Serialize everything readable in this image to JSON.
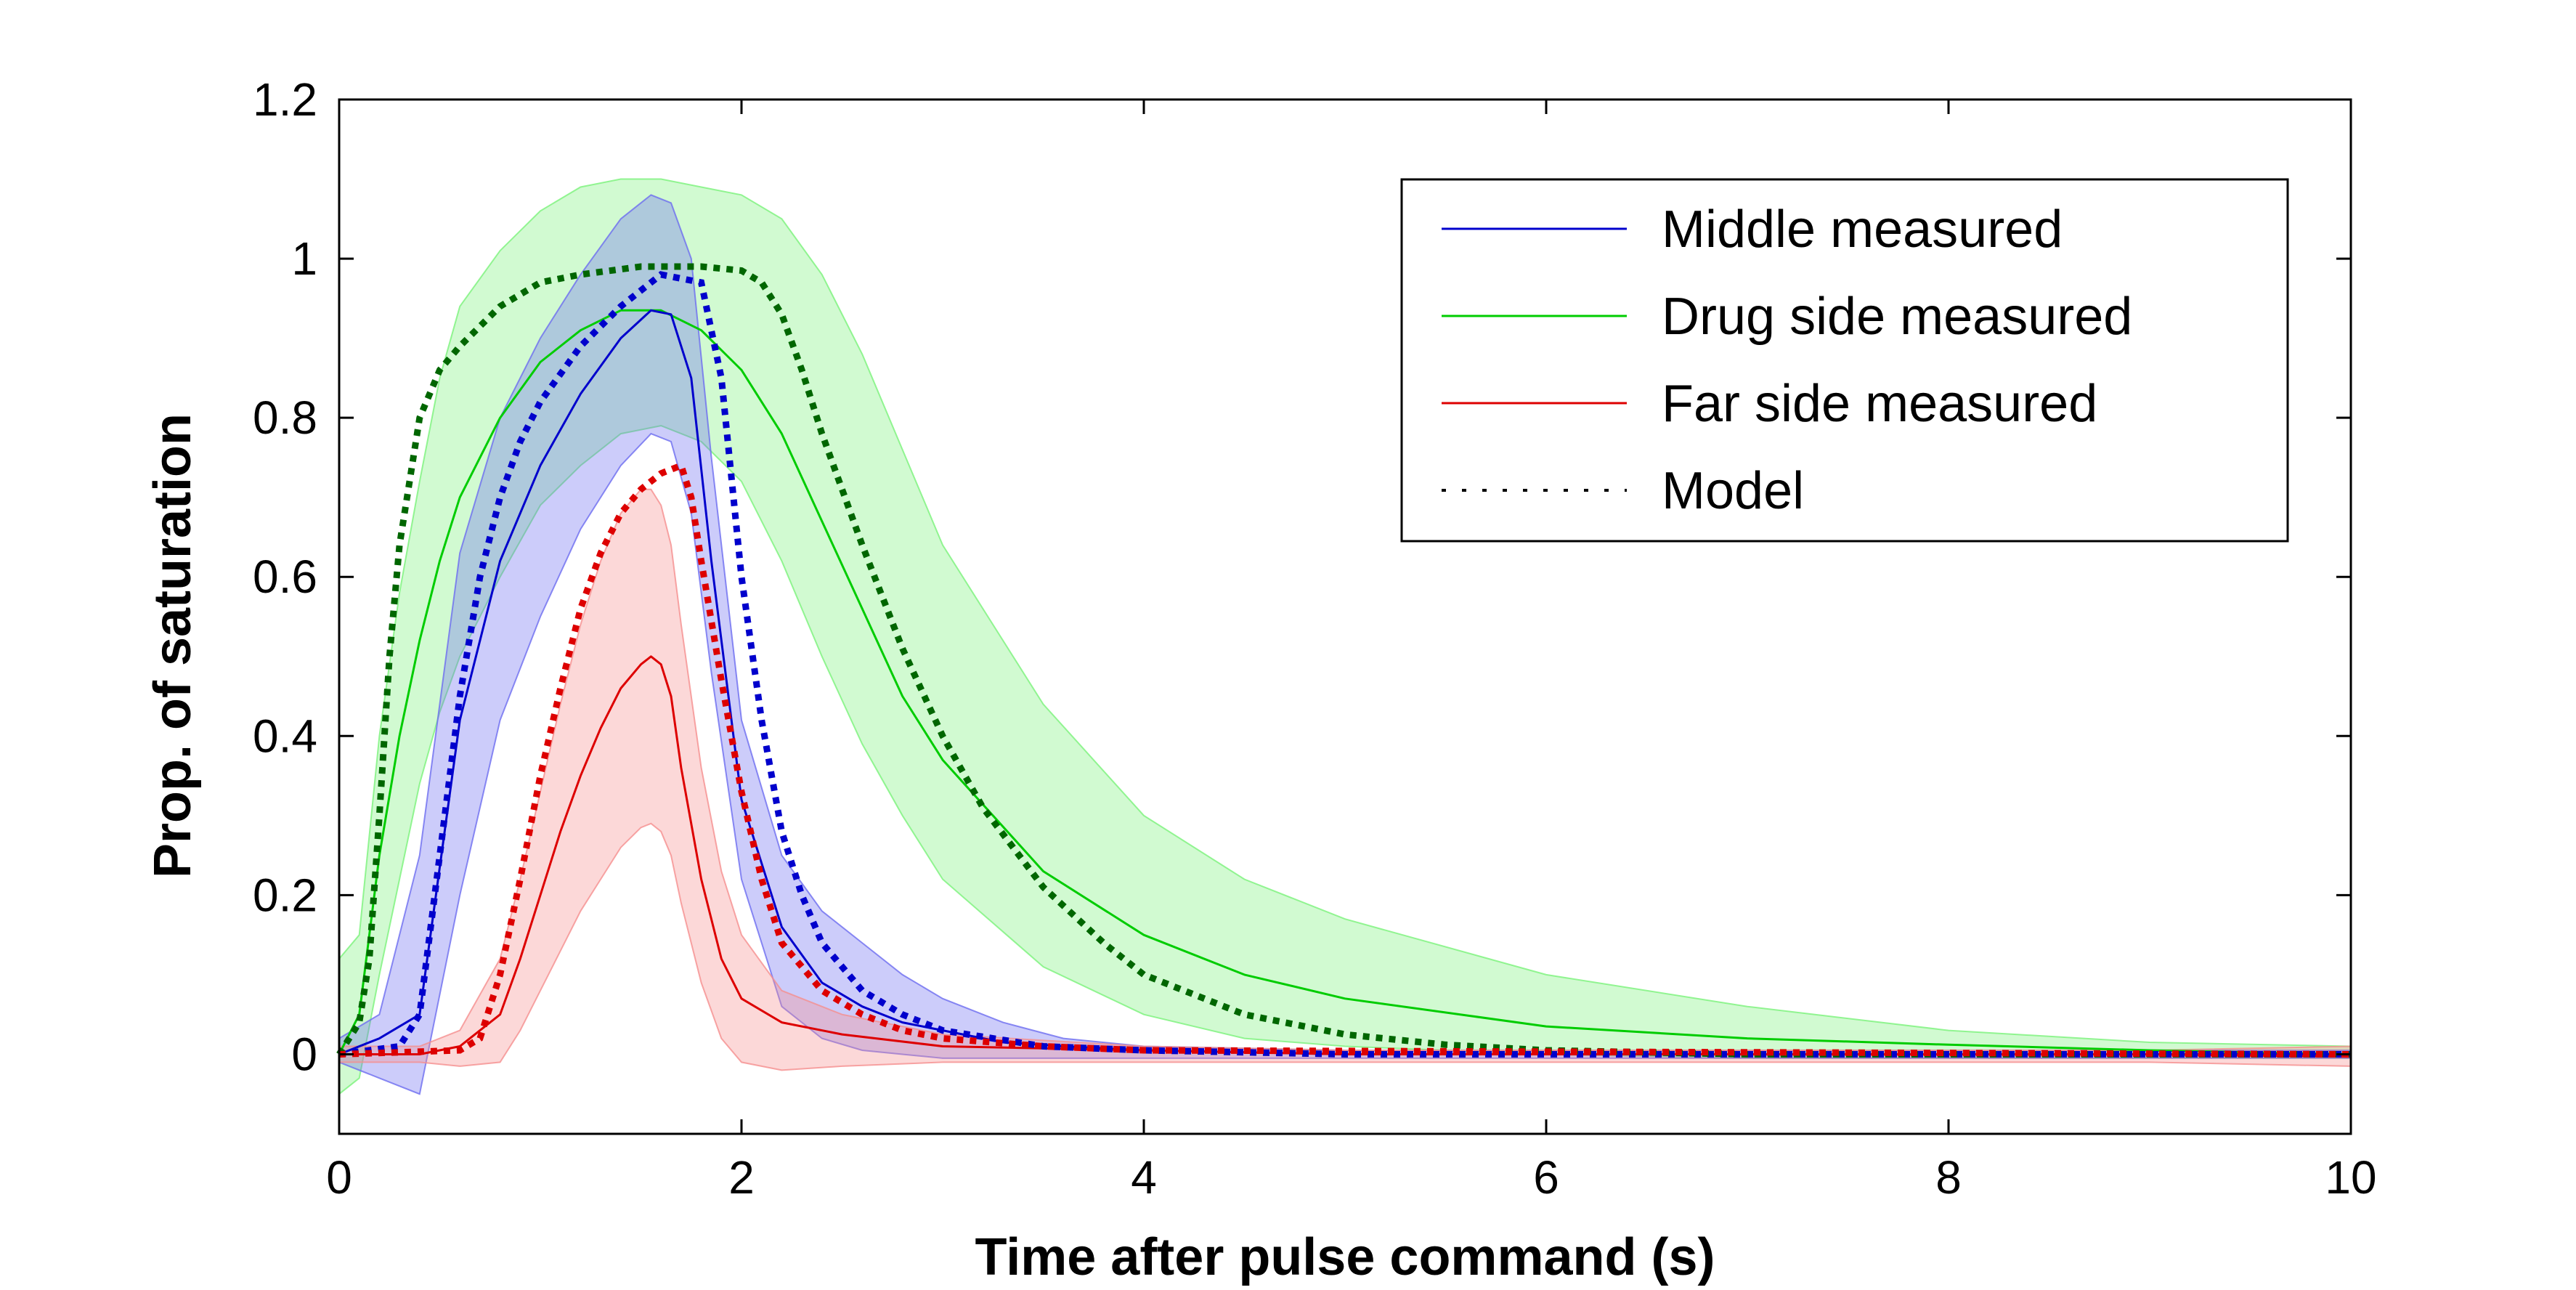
{
  "chart_data": {
    "type": "line",
    "title": "",
    "xlabel": "Time after pulse command (s)",
    "ylabel": "Prop. of saturation",
    "xlim": [
      0,
      10
    ],
    "ylim": [
      -0.1,
      1.2
    ],
    "xticks": [
      0,
      2,
      4,
      6,
      8,
      10
    ],
    "yticks": [
      0,
      0.2,
      0.4,
      0.6,
      0.8,
      1,
      1.2
    ],
    "xtick_labels": [
      "0",
      "2",
      "4",
      "6",
      "8",
      "10"
    ],
    "ytick_labels": [
      "0",
      "0.2",
      "0.4",
      "0.6",
      "0.8",
      "1",
      "1.2"
    ],
    "grid": false,
    "legend_position": "top-right",
    "legend": [
      {
        "label": "Middle measured",
        "color": "#0000cc",
        "style": "solid"
      },
      {
        "label": "Drug side measured",
        "color": "#00cc00",
        "style": "solid"
      },
      {
        "label": "Far side measured",
        "color": "#dd0000",
        "style": "solid"
      },
      {
        "label": "Model",
        "color": "#000000",
        "style": "dotted"
      }
    ],
    "series": [
      {
        "key": "middle",
        "color": "#0000cc",
        "band_color": "#6d6df0",
        "x": [
          0,
          0.2,
          0.4,
          0.6,
          0.8,
          1.0,
          1.2,
          1.4,
          1.55,
          1.65,
          1.75,
          1.85,
          2.0,
          2.2,
          2.4,
          2.6,
          2.8,
          3.0,
          3.3,
          3.6,
          4.0,
          5.0,
          6.0,
          7.0,
          8.0,
          9.0,
          10.0
        ],
        "mean": [
          0.0,
          0.02,
          0.05,
          0.42,
          0.62,
          0.74,
          0.83,
          0.9,
          0.935,
          0.93,
          0.85,
          0.62,
          0.32,
          0.16,
          0.09,
          0.06,
          0.04,
          0.03,
          0.015,
          0.01,
          0.005,
          0.0,
          0.0,
          0.0,
          0.0,
          0.0,
          0.0
        ],
        "upper": [
          0.02,
          0.05,
          0.25,
          0.63,
          0.8,
          0.9,
          0.98,
          1.05,
          1.08,
          1.07,
          1.0,
          0.75,
          0.42,
          0.25,
          0.18,
          0.14,
          0.1,
          0.07,
          0.04,
          0.02,
          0.01,
          0.005,
          0.005,
          0.005,
          0.005,
          0.005,
          0.005
        ],
        "lower": [
          -0.01,
          -0.03,
          -0.05,
          0.2,
          0.42,
          0.55,
          0.66,
          0.74,
          0.78,
          0.77,
          0.68,
          0.48,
          0.22,
          0.06,
          0.02,
          0.005,
          0.0,
          -0.005,
          -0.005,
          -0.005,
          -0.005,
          -0.005,
          -0.005,
          -0.005,
          -0.005,
          -0.005,
          -0.005
        ]
      },
      {
        "key": "drug",
        "color": "#00cc00",
        "band_color": "#7af27a",
        "x": [
          0,
          0.1,
          0.2,
          0.3,
          0.4,
          0.5,
          0.6,
          0.8,
          1.0,
          1.2,
          1.4,
          1.6,
          1.8,
          2.0,
          2.2,
          2.4,
          2.6,
          2.8,
          3.0,
          3.5,
          4.0,
          4.5,
          5.0,
          6.0,
          7.0,
          8.0,
          9.0,
          10.0
        ],
        "mean": [
          0.0,
          0.05,
          0.25,
          0.4,
          0.52,
          0.62,
          0.7,
          0.8,
          0.87,
          0.91,
          0.935,
          0.935,
          0.91,
          0.86,
          0.78,
          0.67,
          0.56,
          0.45,
          0.37,
          0.23,
          0.15,
          0.1,
          0.07,
          0.035,
          0.02,
          0.012,
          0.005,
          0.0
        ],
        "upper": [
          0.12,
          0.15,
          0.4,
          0.58,
          0.72,
          0.85,
          0.94,
          1.01,
          1.06,
          1.09,
          1.1,
          1.1,
          1.09,
          1.08,
          1.05,
          0.98,
          0.88,
          0.76,
          0.64,
          0.44,
          0.3,
          0.22,
          0.17,
          0.1,
          0.06,
          0.03,
          0.015,
          0.01
        ],
        "lower": [
          -0.05,
          -0.03,
          0.1,
          0.22,
          0.34,
          0.43,
          0.5,
          0.6,
          0.69,
          0.74,
          0.78,
          0.79,
          0.77,
          0.72,
          0.62,
          0.5,
          0.39,
          0.3,
          0.22,
          0.11,
          0.05,
          0.02,
          0.01,
          0.0,
          -0.005,
          -0.005,
          -0.005,
          -0.005
        ]
      },
      {
        "key": "far",
        "color": "#dd0000",
        "band_color": "#f58e8e",
        "x": [
          0,
          0.4,
          0.6,
          0.8,
          0.9,
          1.0,
          1.1,
          1.2,
          1.3,
          1.4,
          1.5,
          1.55,
          1.6,
          1.65,
          1.7,
          1.8,
          1.9,
          2.0,
          2.2,
          2.5,
          3.0,
          4.0,
          5.0,
          6.0,
          7.0,
          8.0,
          9.0,
          10.0
        ],
        "mean": [
          0.0,
          0.0,
          0.01,
          0.05,
          0.12,
          0.2,
          0.28,
          0.35,
          0.41,
          0.46,
          0.49,
          0.5,
          0.49,
          0.45,
          0.36,
          0.22,
          0.12,
          0.07,
          0.04,
          0.025,
          0.01,
          0.005,
          0.0,
          0.0,
          0.0,
          0.0,
          0.0,
          -0.003
        ],
        "upper": [
          0.01,
          0.01,
          0.03,
          0.12,
          0.22,
          0.33,
          0.44,
          0.54,
          0.62,
          0.68,
          0.71,
          0.71,
          0.69,
          0.64,
          0.54,
          0.36,
          0.23,
          0.15,
          0.08,
          0.05,
          0.025,
          0.01,
          0.005,
          0.005,
          0.005,
          0.005,
          0.005,
          0.01
        ],
        "lower": [
          -0.01,
          -0.01,
          -0.015,
          -0.01,
          0.03,
          0.08,
          0.13,
          0.18,
          0.22,
          0.26,
          0.285,
          0.29,
          0.28,
          0.25,
          0.19,
          0.09,
          0.02,
          -0.01,
          -0.02,
          -0.015,
          -0.01,
          -0.01,
          -0.01,
          -0.01,
          -0.01,
          -0.01,
          -0.01,
          -0.015
        ]
      }
    ],
    "model": [
      {
        "key": "middle-model",
        "color": "#0000cc",
        "x": [
          0,
          0.3,
          0.4,
          0.5,
          0.6,
          0.7,
          0.8,
          0.9,
          1.0,
          1.2,
          1.4,
          1.6,
          1.8,
          1.9,
          2.0,
          2.1,
          2.2,
          2.3,
          2.4,
          2.6,
          2.8,
          3.0,
          3.5,
          4.0,
          5.0,
          10.0
        ],
        "y": [
          0.0,
          0.01,
          0.05,
          0.25,
          0.45,
          0.6,
          0.7,
          0.77,
          0.82,
          0.89,
          0.94,
          0.98,
          0.97,
          0.85,
          0.6,
          0.42,
          0.28,
          0.2,
          0.14,
          0.08,
          0.05,
          0.03,
          0.01,
          0.005,
          0.0,
          0.0
        ]
      },
      {
        "key": "drug-model",
        "color": "#006600",
        "x": [
          0,
          0.1,
          0.15,
          0.2,
          0.25,
          0.3,
          0.4,
          0.5,
          0.6,
          0.8,
          1.0,
          1.2,
          1.5,
          1.8,
          2.0,
          2.1,
          2.2,
          2.3,
          2.4,
          2.6,
          2.8,
          3.0,
          3.2,
          3.5,
          3.8,
          4.0,
          4.5,
          5.0,
          5.5,
          6.0,
          7.0,
          8.0,
          9.0,
          10.0
        ],
        "y": [
          0.0,
          0.04,
          0.12,
          0.3,
          0.5,
          0.64,
          0.8,
          0.86,
          0.89,
          0.94,
          0.97,
          0.98,
          0.99,
          0.99,
          0.985,
          0.97,
          0.93,
          0.86,
          0.78,
          0.64,
          0.51,
          0.4,
          0.31,
          0.21,
          0.14,
          0.1,
          0.05,
          0.025,
          0.012,
          0.005,
          0.0,
          0.0,
          0.0,
          0.0
        ]
      },
      {
        "key": "far-model",
        "color": "#dd0000",
        "x": [
          0,
          0.6,
          0.7,
          0.8,
          0.9,
          1.0,
          1.1,
          1.2,
          1.3,
          1.4,
          1.5,
          1.6,
          1.7,
          1.75,
          1.8,
          1.9,
          2.0,
          2.1,
          2.2,
          2.4,
          2.6,
          2.8,
          3.0,
          3.5,
          4.0,
          10.0
        ],
        "y": [
          0.0,
          0.005,
          0.02,
          0.1,
          0.22,
          0.35,
          0.46,
          0.56,
          0.63,
          0.68,
          0.71,
          0.73,
          0.74,
          0.7,
          0.62,
          0.47,
          0.33,
          0.22,
          0.14,
          0.08,
          0.05,
          0.03,
          0.02,
          0.01,
          0.005,
          0.0
        ]
      }
    ]
  }
}
